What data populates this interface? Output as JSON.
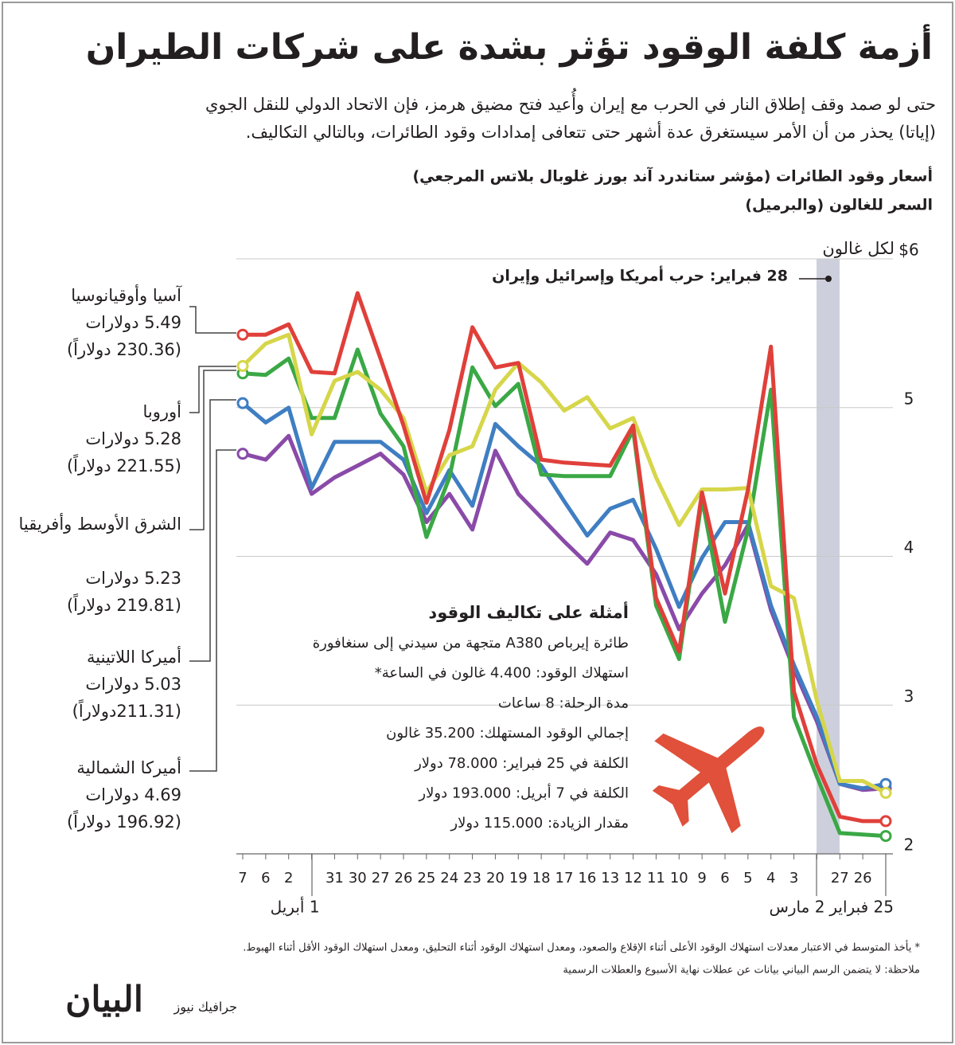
{
  "header": {
    "title": "أزمة كلفة الوقود تؤثر بشدة على شركات الطيران",
    "subtitle": [
      "حتى لو صمد وقف إطلاق النار في الحرب مع إيران وأُعيد فتح مضيق هرمز، فإن الاتحاد الدولي للنقل الجوي",
      "(إياتا) يحذر من أن الأمر سيستغرق عدة أشهر حتى تتعافى إمدادات وقود الطائرات، وبالتالي التكاليف."
    ]
  },
  "chart_data": {
    "type": "line",
    "title": "أسعار وقود الطائرات (مؤشر ستاندرد آند بورز غلوبال بلاتس المرجعي)",
    "subtitle": "السعر للغالون (والبرميل)",
    "y_unit": "لكل غالون",
    "annotation": "28 فبراير: حرب أمريكا وإسرائيل وإيران",
    "categories": [
      "7",
      "6",
      "2",
      "1 أبريل",
      "31",
      "30",
      "27",
      "26",
      "25",
      "24",
      "23",
      "20",
      "19",
      "18",
      "17",
      "16",
      "13",
      "12",
      "11",
      "10",
      "9",
      "6",
      "5",
      "4",
      "3",
      "2 مارس",
      "27",
      "26",
      "25 فبراير"
    ],
    "ylim": [
      2,
      6
    ],
    "yticks": [
      2,
      3,
      4,
      5,
      {
        "value": 6,
        "label": "$6"
      }
    ],
    "grid": true,
    "series": [
      {
        "name": "أميركا الشمالية",
        "price_label": "4.69 دولارات",
        "barrel_label": "(196.92 دولاراً)",
        "color": "#8a4aa8",
        "values": [
          4.69,
          4.65,
          4.81,
          4.42,
          4.53,
          4.61,
          4.69,
          4.55,
          4.23,
          4.42,
          4.18,
          4.71,
          4.42,
          4.26,
          4.1,
          3.95,
          4.16,
          4.11,
          3.88,
          3.51,
          3.75,
          3.94,
          4.21,
          3.64,
          3.24,
          2.89,
          2.47,
          2.43,
          2.44
        ]
      },
      {
        "name": "أميركا اللاتينية",
        "price_label": "5.03 دولارات",
        "barrel_label": "(211.31دولاراً)",
        "color": "#3f7ec2",
        "values": [
          5.03,
          4.9,
          5.0,
          4.46,
          4.77,
          4.77,
          4.77,
          4.65,
          4.29,
          4.58,
          4.34,
          4.89,
          4.74,
          4.61,
          4.37,
          4.14,
          4.32,
          4.38,
          4.05,
          3.66,
          3.99,
          4.23,
          4.23,
          3.67,
          3.27,
          2.92,
          2.47,
          2.44,
          2.47
        ]
      },
      {
        "name": "الشرق الأوسط وأفريقيا",
        "price_label": "5.23 دولارات",
        "barrel_label": "(219.81 دولاراً)",
        "color": "#3aa845",
        "values": [
          5.23,
          5.22,
          5.33,
          4.93,
          4.93,
          5.39,
          4.96,
          4.74,
          4.13,
          4.53,
          5.27,
          5.01,
          5.16,
          4.55,
          4.54,
          4.54,
          4.54,
          4.85,
          3.67,
          3.31,
          4.39,
          3.56,
          4.18,
          5.12,
          2.92,
          2.52,
          2.14,
          2.13,
          2.12
        ]
      },
      {
        "name": "أوروبا",
        "price_label": "5.28 دولارات",
        "barrel_label": "(221.55 دولاراً)",
        "color": "#d6d64a",
        "values": [
          5.28,
          5.43,
          5.49,
          4.82,
          5.18,
          5.24,
          5.12,
          4.93,
          4.43,
          4.68,
          4.74,
          5.12,
          5.3,
          5.17,
          4.98,
          5.07,
          4.86,
          4.93,
          4.53,
          4.21,
          4.45,
          4.45,
          4.46,
          3.8,
          3.72,
          3.03,
          2.49,
          2.49,
          2.41
        ]
      },
      {
        "name": "آسيا وأوقيانوسيا",
        "price_label": "5.49 دولارات",
        "barrel_label": "(230.36 دولاراً)",
        "color": "#e0403a",
        "values": [
          5.49,
          5.49,
          5.56,
          5.24,
          5.23,
          5.77,
          5.33,
          4.88,
          4.36,
          4.85,
          5.54,
          5.27,
          5.3,
          4.65,
          4.63,
          4.62,
          4.61,
          4.88,
          3.72,
          3.36,
          4.43,
          3.75,
          4.45,
          5.41,
          3.09,
          2.6,
          2.25,
          2.22,
          2.22
        ]
      }
    ]
  },
  "inset": {
    "title": "أمثلة على تكاليف الوقود",
    "lines": [
      "طائرة إيرباص A380 متجهة من سيدني إلى سنغافورة",
      "استهلاك الوقود: 4.400 غالون في الساعة*",
      "مدة الرحلة: 8 ساعات",
      "إجمالي الوقود المستهلك: 35.200 غالون",
      "الكلفة في 25 فبراير: 78.000 دولار",
      "الكلفة في 7 أبريل: 193.000 دولار",
      "مقدار الزيادة: 115.000 دولار"
    ]
  },
  "footnotes": [
    "* يأخذ المتوسط في الاعتبار معدلات استهلاك الوقود الأعلى أثناء الإقلاع والصعود، ومعدل استهلاك الوقود أثناء التحليق، ومعدل استهلاك الوقود الأقل أثناء الهبوط.",
    "ملاحظة: لا يتضمن الرسم البياني بيانات عن عطلات نهاية الأسبوع والعطلات الرسمية"
  ],
  "brand": {
    "logo": "البيان",
    "section": "جرافيك نيوز"
  }
}
